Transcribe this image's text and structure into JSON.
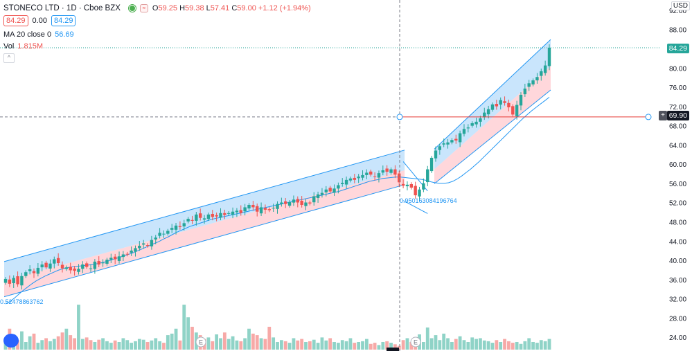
{
  "legend": {
    "title": "STONECO LTD · 1D · Cboe BZX",
    "open_label": "O",
    "open": "59.25",
    "high_label": "H",
    "high": "59.38",
    "low_label": "L",
    "low": "57.41",
    "close_label": "C",
    "close": "59.00",
    "change": "+1.12 (+1.94%)",
    "bid": "84.29",
    "spread": "0.00",
    "ask": "84.29",
    "ma_label": "MA 20 close 0",
    "ma_value": "56.69",
    "vol_label": "Vol",
    "vol_value": "1.815M"
  },
  "axis": {
    "currency": "USD",
    "last_price": "84.29",
    "cursor_price": "69.90"
  },
  "annotations": {
    "fib_left": "0.52478863762",
    "fib_mid": "0.950163084196764",
    "earnings_marker": "E"
  },
  "colors": {
    "up": "#26a69a",
    "down": "#ef5350",
    "vol_up": "#8fd3c7",
    "vol_down": "#f7a9a7",
    "channel_upper": "#bbdefb",
    "channel_lower": "#ffcdd2",
    "channel_line": "#2196f3",
    "ma": "#2196f3",
    "cursor_line": "#e53935",
    "last_price": "#26a69a"
  },
  "chart_data": {
    "type": "candlestick",
    "title": "STONECO LTD · 1D · Cboe BZX",
    "y_ticks": [
      24,
      28,
      32,
      36,
      40,
      44,
      48,
      52,
      56,
      60,
      64,
      68,
      72,
      76,
      80,
      84,
      88,
      92
    ],
    "ylim": [
      21.5,
      93.5
    ],
    "grid": false,
    "legend": "top-left",
    "series": {
      "closes": [
        36.2,
        35.2,
        36.4,
        35.1,
        36.8,
        37.6,
        38.2,
        37.4,
        38.5,
        39.2,
        38.6,
        39.4,
        40.3,
        39.5,
        38.4,
        38.6,
        38.0,
        37.9,
        38.3,
        39.2,
        38.7,
        38.4,
        39.8,
        39.2,
        39.6,
        40.2,
        40.6,
        40.3,
        40.9,
        41.3,
        41.3,
        42.1,
        42.6,
        43.1,
        43.6,
        43.1,
        44.3,
        44.8,
        45.8,
        45.6,
        46.2,
        46.8,
        47.3,
        47.0,
        47.8,
        48.7,
        48.3,
        49.6,
        48.9,
        48.8,
        49.6,
        49.1,
        49.2,
        49.9,
        49.5,
        49.9,
        50.2,
        50.4,
        49.9,
        51.1,
        51.6,
        51.1,
        50.2,
        51.1,
        50.6,
        50.5,
        51.0,
        51.8,
        52.1,
        51.8,
        52.2,
        52.7,
        52.1,
        51.6,
        52.1,
        51.9,
        53.4,
        53.8,
        54.1,
        54.8,
        54.4,
        55.0,
        55.7,
        56.2,
        56.8,
        57.1,
        56.8,
        57.5,
        57.8,
        58.3,
        57.9,
        57.4,
        58.2,
        58.8,
        58.5,
        59.0,
        57.9,
        56.3,
        55.6,
        55.8,
        55.2,
        53.6,
        54.8,
        56.1,
        59.0,
        61.4,
        62.9,
        63.8,
        64.4,
        64.6,
        65.1,
        65.0,
        66.5,
        67.4,
        67.7,
        68.6,
        68.9,
        69.6,
        70.8,
        71.5,
        72.5,
        72.1,
        73.4,
        72.8,
        71.9,
        70.4,
        72.4,
        74.5,
        75.8,
        76.9,
        77.5,
        78.2,
        79.4,
        80.6,
        84.3
      ],
      "ma20": [
        31,
        31.5,
        32.2,
        33,
        33.8,
        34.5,
        35.2,
        35.8,
        36.3,
        36.8,
        37.2,
        37.6,
        38,
        38.3,
        38.5,
        38.7,
        38.8,
        38.9,
        39,
        39.1,
        39.2,
        39.4,
        39.6,
        39.8,
        40.1,
        40.4,
        40.7,
        41,
        41.3,
        41.6,
        42,
        42.4,
        42.8,
        43.2,
        43.6,
        44,
        44.5,
        44.9,
        45.4,
        45.9,
        46.3,
        46.7,
        47.1,
        47.4,
        47.7,
        48,
        48.3,
        48.6,
        48.8,
        49,
        49.2,
        49.4,
        49.6,
        49.8,
        50,
        50.2,
        50.4,
        50.6,
        50.8,
        51,
        51.2,
        51.4,
        51.6,
        51.8,
        52,
        52.2,
        52.4,
        52.6,
        52.8,
        53,
        53.2,
        53.4,
        53.6,
        53.8,
        54,
        54.2,
        54.4,
        54.7,
        55,
        55.3,
        55.6,
        55.9,
        56.2,
        56.5,
        56.7,
        56.9,
        57.1,
        57.2,
        57.3,
        57.4,
        57.4,
        57.3,
        57.2,
        57.1,
        57,
        56.9,
        56.7,
        56.4,
        56.2,
        56.1,
        56.1,
        56.2,
        56.5,
        57,
        57.6,
        58.3,
        59,
        59.8,
        60.6,
        61.5,
        62.4,
        63.3,
        64.2,
        65.1,
        66,
        66.9,
        67.8,
        68.7,
        69.6,
        70.4,
        71.2,
        71.9,
        72.6,
        73.3,
        74
      ]
    },
    "volume_scale_max": 1.0
  }
}
